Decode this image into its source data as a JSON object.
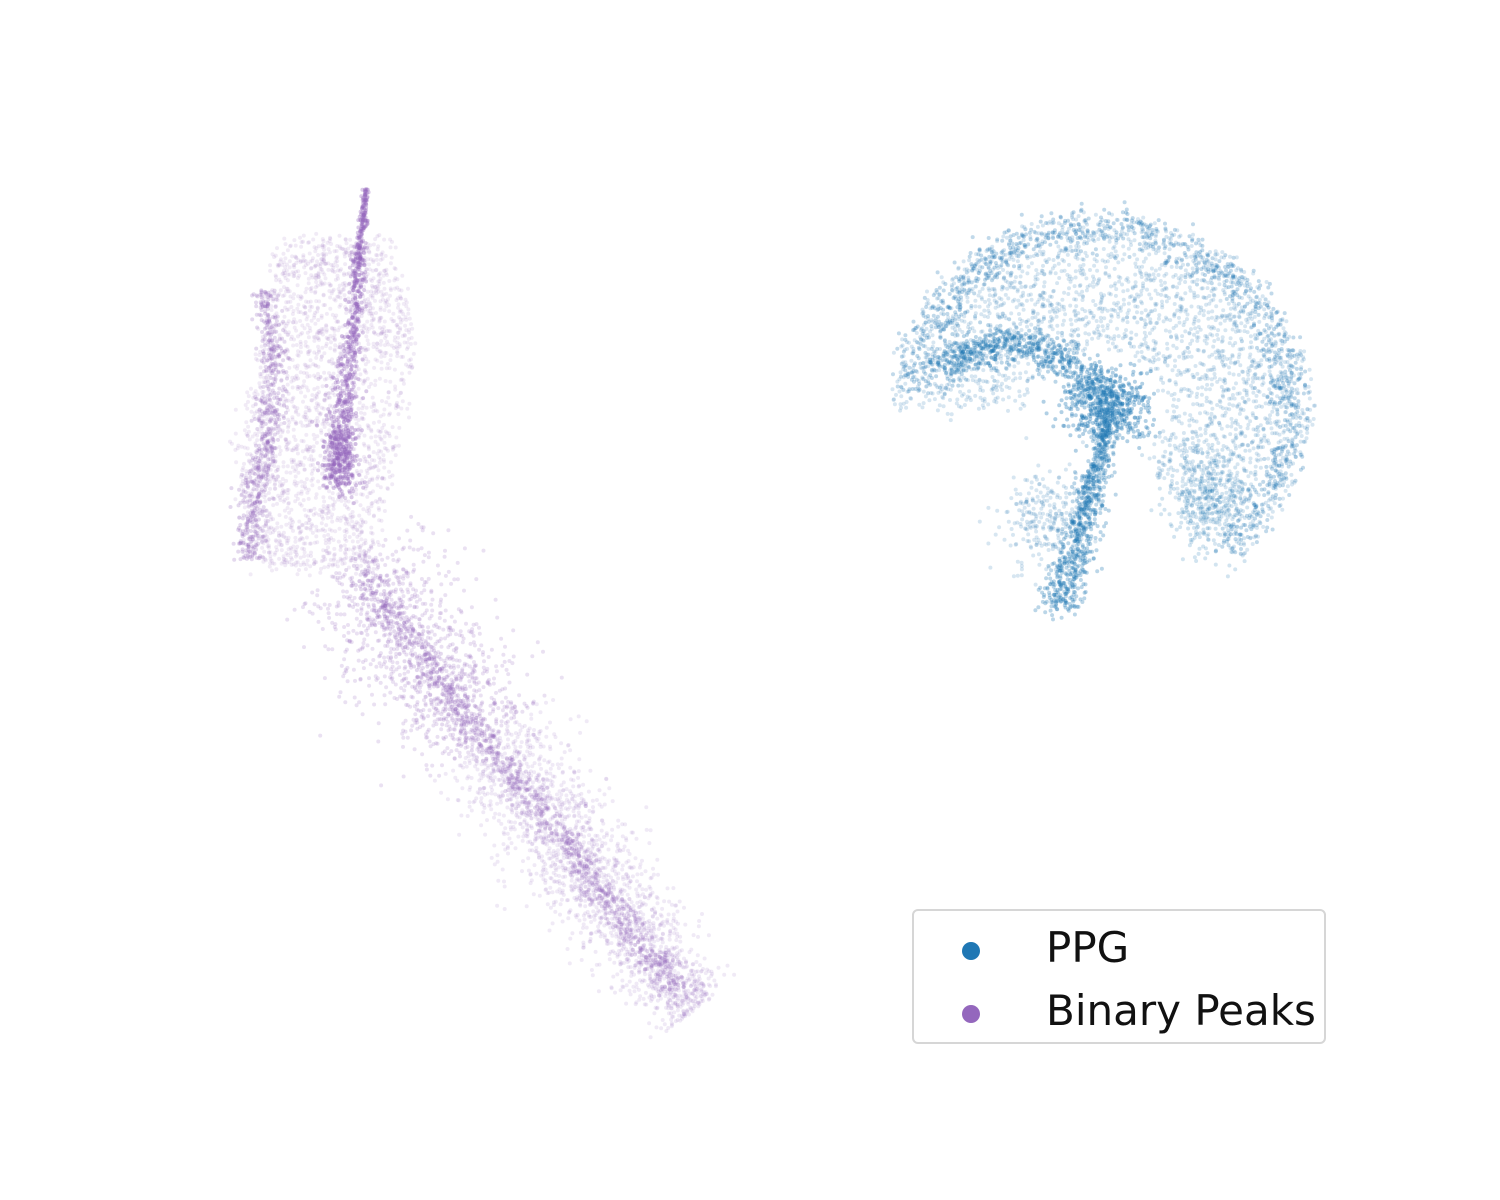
{
  "chart_data": {
    "type": "scatter",
    "title": "",
    "xlabel": "",
    "ylabel": "",
    "axes_visible": false,
    "grid": false,
    "legend_position": "lower-right",
    "series": [
      {
        "name": "PPG",
        "color": "#1f77b4",
        "shape": "umbrella-shaped point cloud on the right: arching cap with a dense inner curve and a stem extending downward",
        "values": []
      },
      {
        "name": "Binary Peaks",
        "color": "#9467bd",
        "shape": "elongated point cloud on the left: a sharp spike at the top, wider band in the upper part, and a diagonal tail to the lower right",
        "values": []
      }
    ]
  }
}
